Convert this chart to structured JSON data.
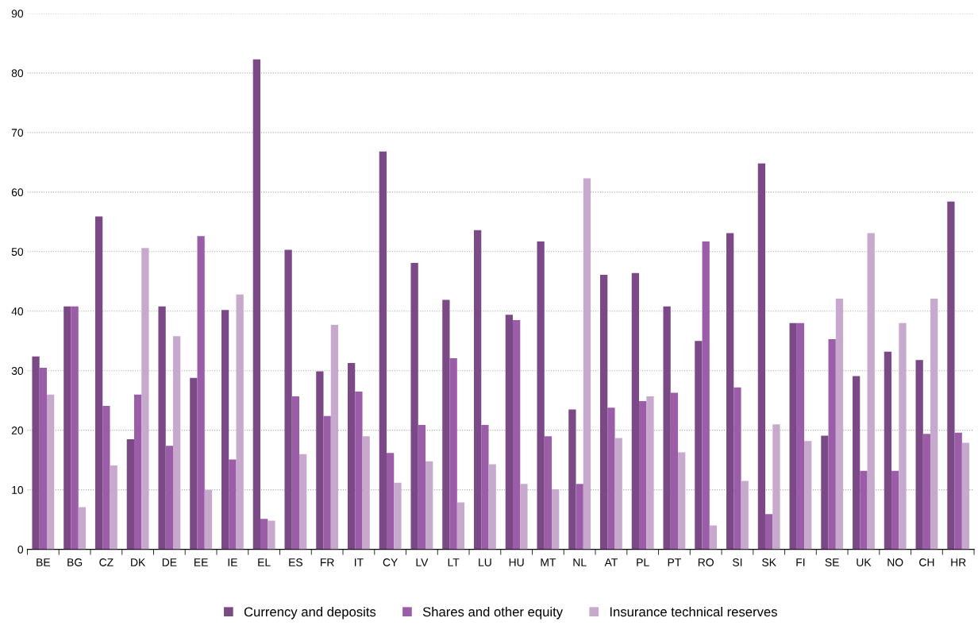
{
  "chart_data": {
    "type": "bar",
    "categories": [
      "BE",
      "BG",
      "CZ",
      "DK",
      "DE",
      "EE",
      "IE",
      "EL",
      "ES",
      "FR",
      "IT",
      "CY",
      "LV",
      "LT",
      "LU",
      "HU",
      "MT",
      "NL",
      "AT",
      "PL",
      "PT",
      "RO",
      "SI",
      "SK",
      "FI",
      "SE",
      "UK",
      "NO",
      "CH",
      "HR"
    ],
    "series": [
      {
        "name": "Currency and deposits",
        "color": "#7b4a86",
        "values": [
          32.4,
          40.8,
          55.9,
          18.5,
          40.8,
          28.8,
          40.2,
          82.3,
          50.3,
          29.9,
          31.3,
          66.8,
          48.1,
          41.9,
          53.6,
          39.4,
          51.7,
          23.5,
          46.1,
          46.4,
          40.8,
          35.0,
          53.1,
          64.8,
          38.0,
          19.1,
          29.1,
          33.2,
          31.8,
          58.4
        ]
      },
      {
        "name": "Shares and other equity",
        "color": "#9b5ca8",
        "values": [
          30.5,
          40.8,
          24.1,
          26.0,
          17.4,
          52.6,
          15.1,
          5.1,
          25.7,
          22.4,
          26.5,
          16.2,
          20.9,
          32.1,
          20.9,
          38.5,
          19.0,
          11.0,
          23.8,
          24.9,
          26.3,
          51.7,
          27.2,
          5.9,
          38.0,
          35.3,
          13.2,
          13.2,
          19.4,
          19.6
        ]
      },
      {
        "name": "Insurance technical reserves",
        "color": "#c6a9cc",
        "values": [
          26.0,
          7.1,
          14.1,
          50.6,
          35.8,
          10.0,
          42.8,
          4.8,
          16.0,
          37.7,
          19.0,
          11.2,
          14.8,
          7.9,
          14.3,
          11.0,
          10.1,
          62.3,
          18.7,
          25.7,
          16.3,
          4.0,
          11.5,
          21.0,
          18.2,
          42.1,
          53.1,
          38.0,
          42.1,
          17.9
        ]
      }
    ],
    "ylim": [
      0,
      90
    ],
    "yticks": [
      0,
      10,
      20,
      30,
      40,
      50,
      60,
      70,
      80,
      90
    ],
    "grid": "y",
    "legend": "bottom"
  }
}
